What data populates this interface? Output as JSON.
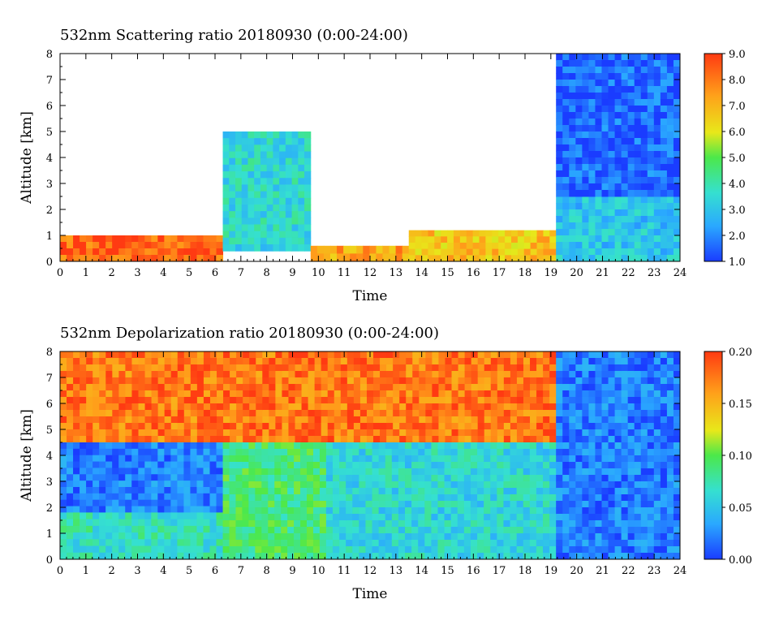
{
  "chart_data": [
    {
      "type": "heatmap",
      "title": "532nm Scattering ratio  20180930 (0:00-24:00)",
      "xlabel": "Time",
      "ylabel": "Altitude [km]",
      "xlim": [
        0,
        24
      ],
      "ylim": [
        0,
        8
      ],
      "x_ticks": [
        "0",
        "1",
        "2",
        "3",
        "4",
        "5",
        "6",
        "7",
        "8",
        "9",
        "10",
        "11",
        "12",
        "13",
        "14",
        "15",
        "16",
        "17",
        "18",
        "19",
        "20",
        "21",
        "22",
        "23",
        "24"
      ],
      "y_ticks": [
        "0",
        "1",
        "2",
        "3",
        "4",
        "5",
        "6",
        "7",
        "8"
      ],
      "colorbar": {
        "range": [
          1.0,
          9.0
        ],
        "ticks": [
          "1.0",
          "2.0",
          "3.0",
          "4.0",
          "5.0",
          "6.0",
          "7.0",
          "8.0",
          "9.0"
        ]
      },
      "colormap": [
        "#1a3cff",
        "#2aa8ff",
        "#35e0d0",
        "#4ce84a",
        "#e8e81a",
        "#ffa01a",
        "#ff3a12"
      ],
      "grid": false,
      "regions": [
        {
          "x": [
            0,
            6.3
          ],
          "y": [
            0,
            1.0
          ],
          "value": 8.5
        },
        {
          "x": [
            6.3,
            9.7
          ],
          "y": [
            0.4,
            5.0
          ],
          "value": 3.5
        },
        {
          "x": [
            9.7,
            13.5
          ],
          "y": [
            0,
            0.6
          ],
          "value": 7.5
        },
        {
          "x": [
            13.5,
            19.2
          ],
          "y": [
            0,
            1.2
          ],
          "value": 7.0
        },
        {
          "x": [
            19.2,
            24
          ],
          "y": [
            0,
            2.5
          ],
          "value": 3.0
        },
        {
          "x": [
            19.2,
            24
          ],
          "y": [
            2.5,
            8
          ],
          "value": 1.5
        }
      ]
    },
    {
      "type": "heatmap",
      "title": "532nm Depolarization ratio  20180930 (0:00-24:00)",
      "xlabel": "Time",
      "ylabel": "Altitude [km]",
      "xlim": [
        0,
        24
      ],
      "ylim": [
        0,
        8
      ],
      "x_ticks": [
        "0",
        "1",
        "2",
        "3",
        "4",
        "5",
        "6",
        "7",
        "8",
        "9",
        "10",
        "11",
        "12",
        "13",
        "14",
        "15",
        "16",
        "17",
        "18",
        "19",
        "20",
        "21",
        "22",
        "23",
        "24"
      ],
      "y_ticks": [
        "0",
        "1",
        "2",
        "3",
        "4",
        "5",
        "6",
        "7",
        "8"
      ],
      "colorbar": {
        "range": [
          0.0,
          0.2
        ],
        "ticks": [
          "0.00",
          "0.05",
          "0.10",
          "0.15",
          "0.20"
        ]
      },
      "colormap": [
        "#1a3cff",
        "#2aa8ff",
        "#35e0d0",
        "#4ce84a",
        "#e8e81a",
        "#ffa01a",
        "#ff3a12"
      ],
      "grid": false,
      "regions": [
        {
          "x": [
            0,
            19.2
          ],
          "y": [
            4.5,
            8
          ],
          "value": 0.18
        },
        {
          "x": [
            0,
            6.3
          ],
          "y": [
            1.8,
            4.5
          ],
          "value": 0.02
        },
        {
          "x": [
            0,
            6.3
          ],
          "y": [
            0,
            1.8
          ],
          "value": 0.07
        },
        {
          "x": [
            6.3,
            10.3
          ],
          "y": [
            0,
            4.5
          ],
          "value": 0.09
        },
        {
          "x": [
            10.3,
            19.2
          ],
          "y": [
            0,
            4.5
          ],
          "value": 0.06
        },
        {
          "x": [
            19.2,
            24
          ],
          "y": [
            0,
            8
          ],
          "value": 0.02
        }
      ]
    }
  ]
}
